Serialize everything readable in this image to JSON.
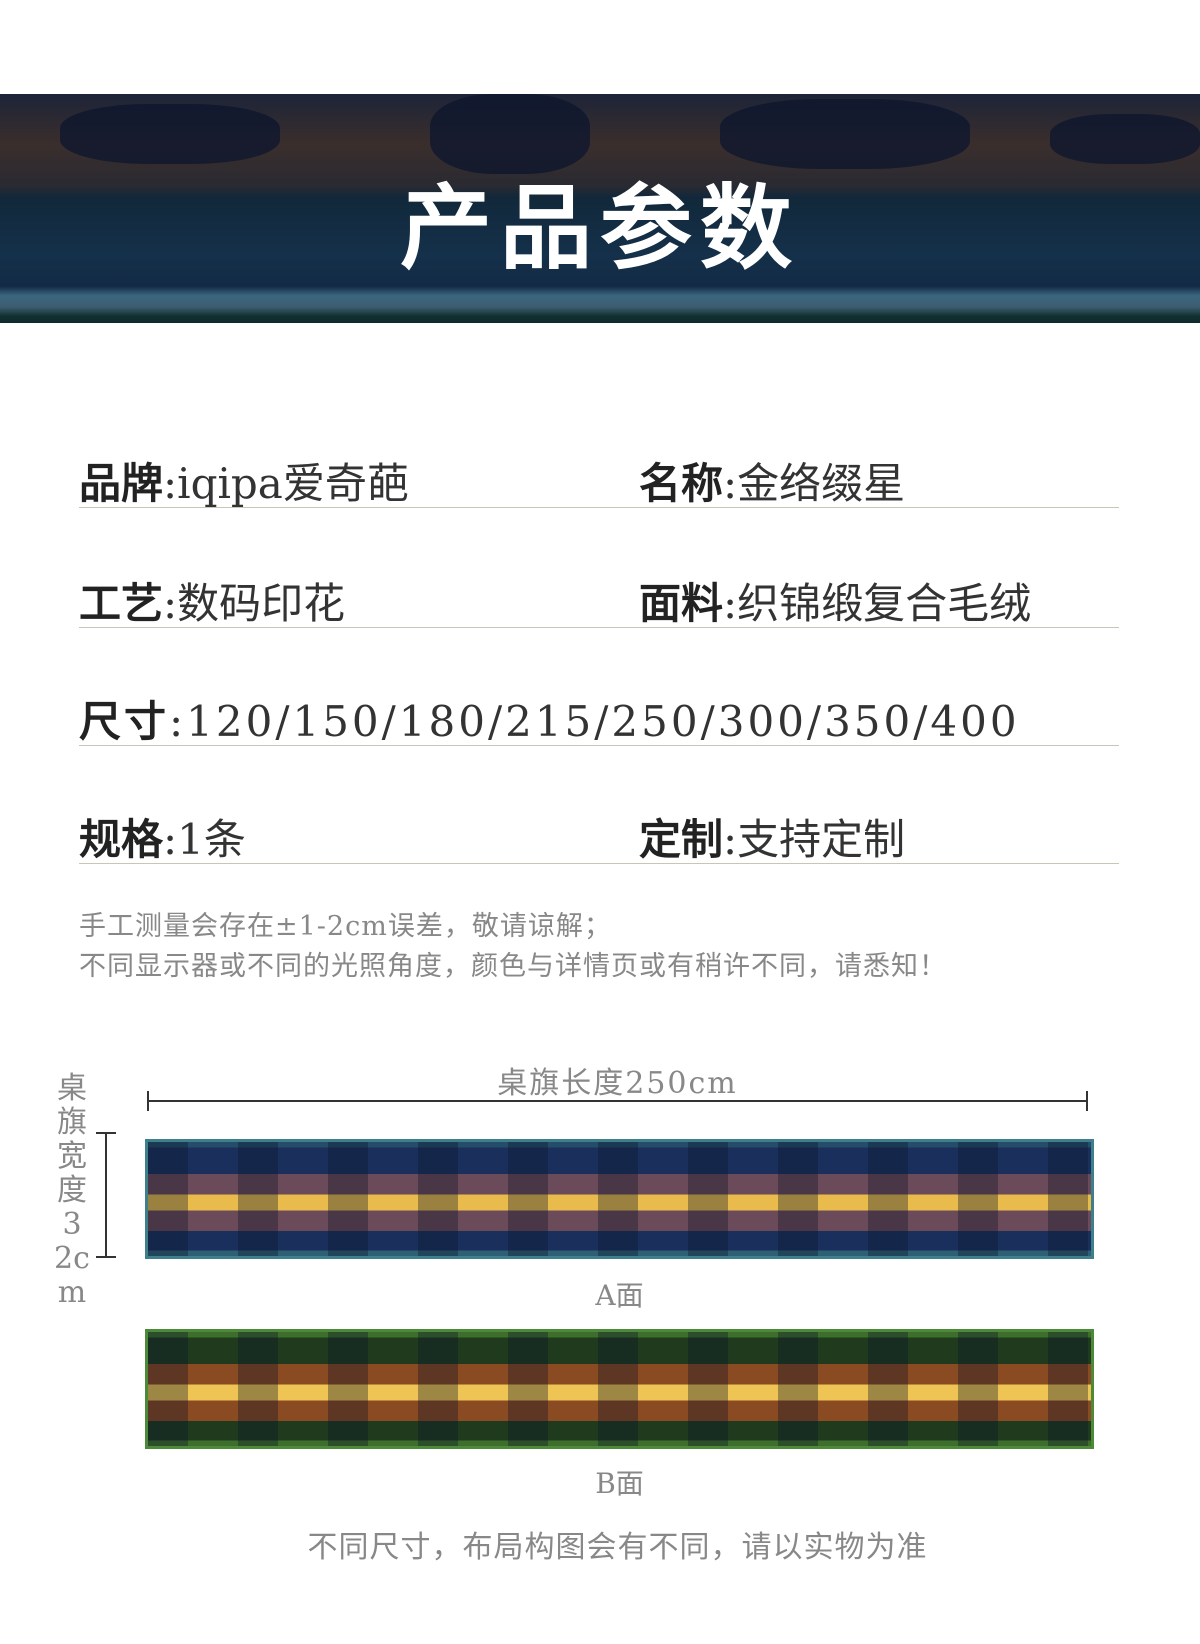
{
  "banner": {
    "title": "产品参数"
  },
  "specs": [
    {
      "label": "品牌",
      "value": "iqipa爱奇葩"
    },
    {
      "label": "名称",
      "value": "金络缀星"
    },
    {
      "label": "工艺",
      "value": "数码印花"
    },
    {
      "label": "面料",
      "value": "织锦缎复合毛绒"
    },
    {
      "label": "尺寸",
      "value": "120/150/180/215/250/300/350/400"
    },
    {
      "label": "规格",
      "value": "1条"
    },
    {
      "label": "定制",
      "value": "支持定制"
    }
  ],
  "notes": [
    "手工测量会存在±1-2cm误差，敬请谅解；",
    "不同显示器或不同的光照角度，颜色与详情页或有稍许不同，请悉知！"
  ],
  "diagram": {
    "length_label": "桌旗长度250cm",
    "width_label": "桌旗宽度32cm",
    "face_a": "A面",
    "face_b": "B面",
    "footer": "不同尺寸，布局构图会有不同，请以实物为准"
  },
  "colors": {
    "face_a": "#1a2f5c",
    "face_b": "#203a1e",
    "stripe": "#e9bb4d"
  }
}
